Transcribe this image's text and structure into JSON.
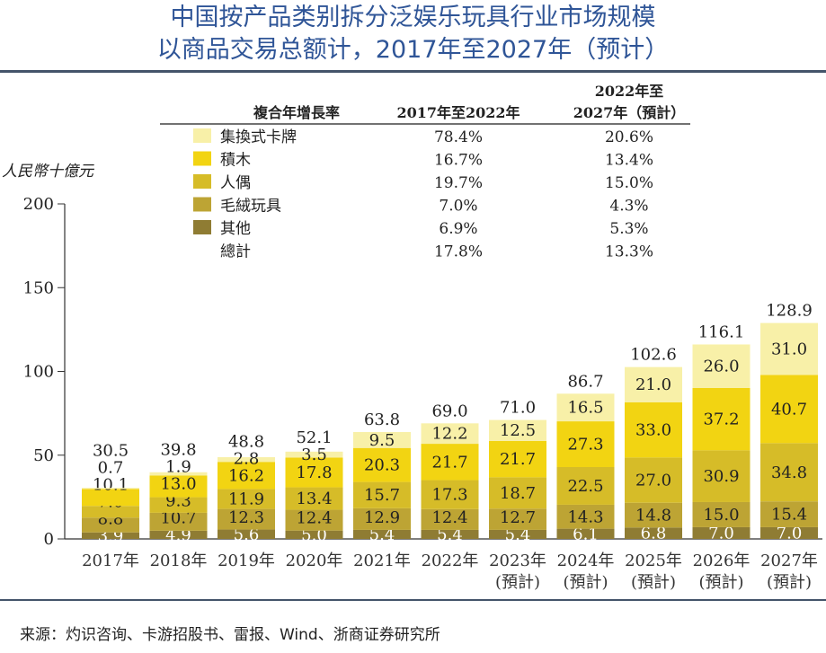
{
  "title": {
    "line1": "中国按产品类别拆分泛娱乐玩具行业市场规模",
    "line2": "以商品交易总额计，2017年至2027年（预计）"
  },
  "source": "来源：灼识咨询、卡游招股书、雷报、Wind、浙商证券研究所",
  "chart_data": {
    "type": "bar",
    "stacked": true,
    "ylabel": "人民幣十億元",
    "ylim": [
      0,
      200
    ],
    "yticks": [
      0,
      50,
      100,
      150,
      200
    ],
    "categories": [
      "2017年",
      "2018年",
      "2019年",
      "2020年",
      "2021年",
      "2022年",
      "2023年\n(預計)",
      "2024年\n(預計)",
      "2025年\n(預計)",
      "2026年\n(預計)",
      "2027年\n(預計)"
    ],
    "series": [
      {
        "name": "其他",
        "color": "#8f7c33",
        "values": [
          3.9,
          4.9,
          5.6,
          5.0,
          5.4,
          5.4,
          5.4,
          6.1,
          6.8,
          7.0,
          7.0
        ]
      },
      {
        "name": "毛絨玩具",
        "color": "#bda434",
        "values": [
          8.8,
          10.7,
          12.3,
          12.4,
          12.9,
          12.4,
          12.7,
          14.3,
          14.8,
          15.0,
          15.4
        ]
      },
      {
        "name": "人偶",
        "color": "#d6bc28",
        "values": [
          7.0,
          9.3,
          11.9,
          13.4,
          15.7,
          17.3,
          18.7,
          22.5,
          27.0,
          30.9,
          34.8
        ]
      },
      {
        "name": "積木",
        "color": "#f2d412",
        "values": [
          10.1,
          13.0,
          16.2,
          17.8,
          20.3,
          21.7,
          21.7,
          27.3,
          33.0,
          37.2,
          40.7
        ]
      },
      {
        "name": "集換式卡牌",
        "color": "#f8f0a8",
        "values": [
          0.7,
          1.9,
          2.8,
          3.5,
          9.5,
          12.2,
          12.5,
          16.5,
          21.0,
          26.0,
          31.0
        ]
      }
    ],
    "totals": [
      30.5,
      39.8,
      48.8,
      52.1,
      63.8,
      69.0,
      71.0,
      86.7,
      102.6,
      116.1,
      128.9
    ],
    "cagr_table": {
      "headers": [
        "複合年增長率",
        "2017年至2022年",
        "2022年至\n2027年（預計）"
      ],
      "rows": [
        [
          "集換式卡牌",
          "78.4%",
          "20.6%"
        ],
        [
          "積木",
          "16.7%",
          "13.4%"
        ],
        [
          "人偶",
          "19.7%",
          "15.0%"
        ],
        [
          "毛絨玩具",
          "7.0%",
          "4.3%"
        ],
        [
          "其他",
          "6.9%",
          "5.3%"
        ],
        [
          "總計",
          "17.8%",
          "13.3%"
        ]
      ]
    }
  }
}
